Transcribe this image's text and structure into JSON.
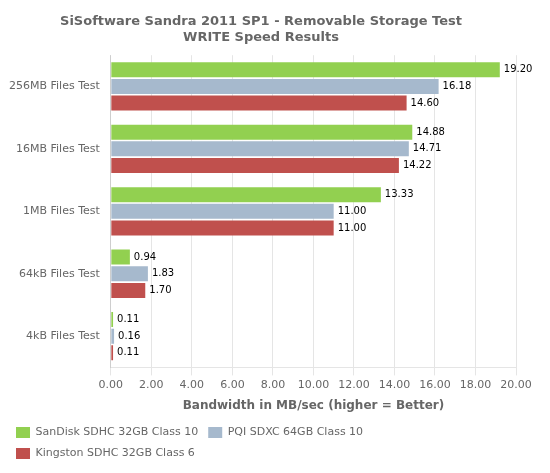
{
  "chart_data": {
    "type": "bar",
    "orientation": "horizontal",
    "title": "SiSoftware Sandra 2011 SP1 - Removable Storage Test\nWRITE Speed Results",
    "categories": [
      "256MB Files Test",
      "16MB Files Test",
      "1MB Files Test",
      "64kB Files Test",
      "4kB Files Test"
    ],
    "series": [
      {
        "name": "SanDisk SDHC 32GB Class 10",
        "color": "#92d050",
        "values": [
          19.2,
          14.88,
          13.33,
          0.94,
          0.11
        ],
        "value_labels": [
          "19.20",
          "14.88",
          "13.33",
          "0.94",
          "0.11"
        ]
      },
      {
        "name": "PQI SDXC 64GB Class 10",
        "color": "#a6b9cd",
        "values": [
          16.18,
          14.71,
          11.0,
          1.83,
          0.16
        ],
        "value_labels": [
          "16.18",
          "14.71",
          "11.00",
          "1.83",
          "0.16"
        ]
      },
      {
        "name": "Kingston SDHC 32GB Class 6",
        "color": "#c0504d",
        "values": [
          14.6,
          14.22,
          11.0,
          1.7,
          0.11
        ],
        "value_labels": [
          "14.60",
          "14.22",
          "11.00",
          "1.70",
          "0.11"
        ]
      }
    ],
    "xlabel": "Bandwidth in MB/sec (higher = Better)",
    "xlim": [
      0,
      20
    ],
    "xticks": [
      {
        "value": 0,
        "label": "0.00"
      },
      {
        "value": 2,
        "label": "2.00"
      },
      {
        "value": 4,
        "label": "4.00"
      },
      {
        "value": 6,
        "label": "6.00"
      },
      {
        "value": 8,
        "label": "8.00"
      },
      {
        "value": 10,
        "label": "10.00"
      },
      {
        "value": 12,
        "label": "12.00"
      },
      {
        "value": 14,
        "label": "14.00"
      },
      {
        "value": 16,
        "label": "16.00"
      },
      {
        "value": 18,
        "label": "18.00"
      },
      {
        "value": 20,
        "label": "20.00"
      }
    ],
    "grid": true,
    "legend": "bottom",
    "data_labels": true
  }
}
